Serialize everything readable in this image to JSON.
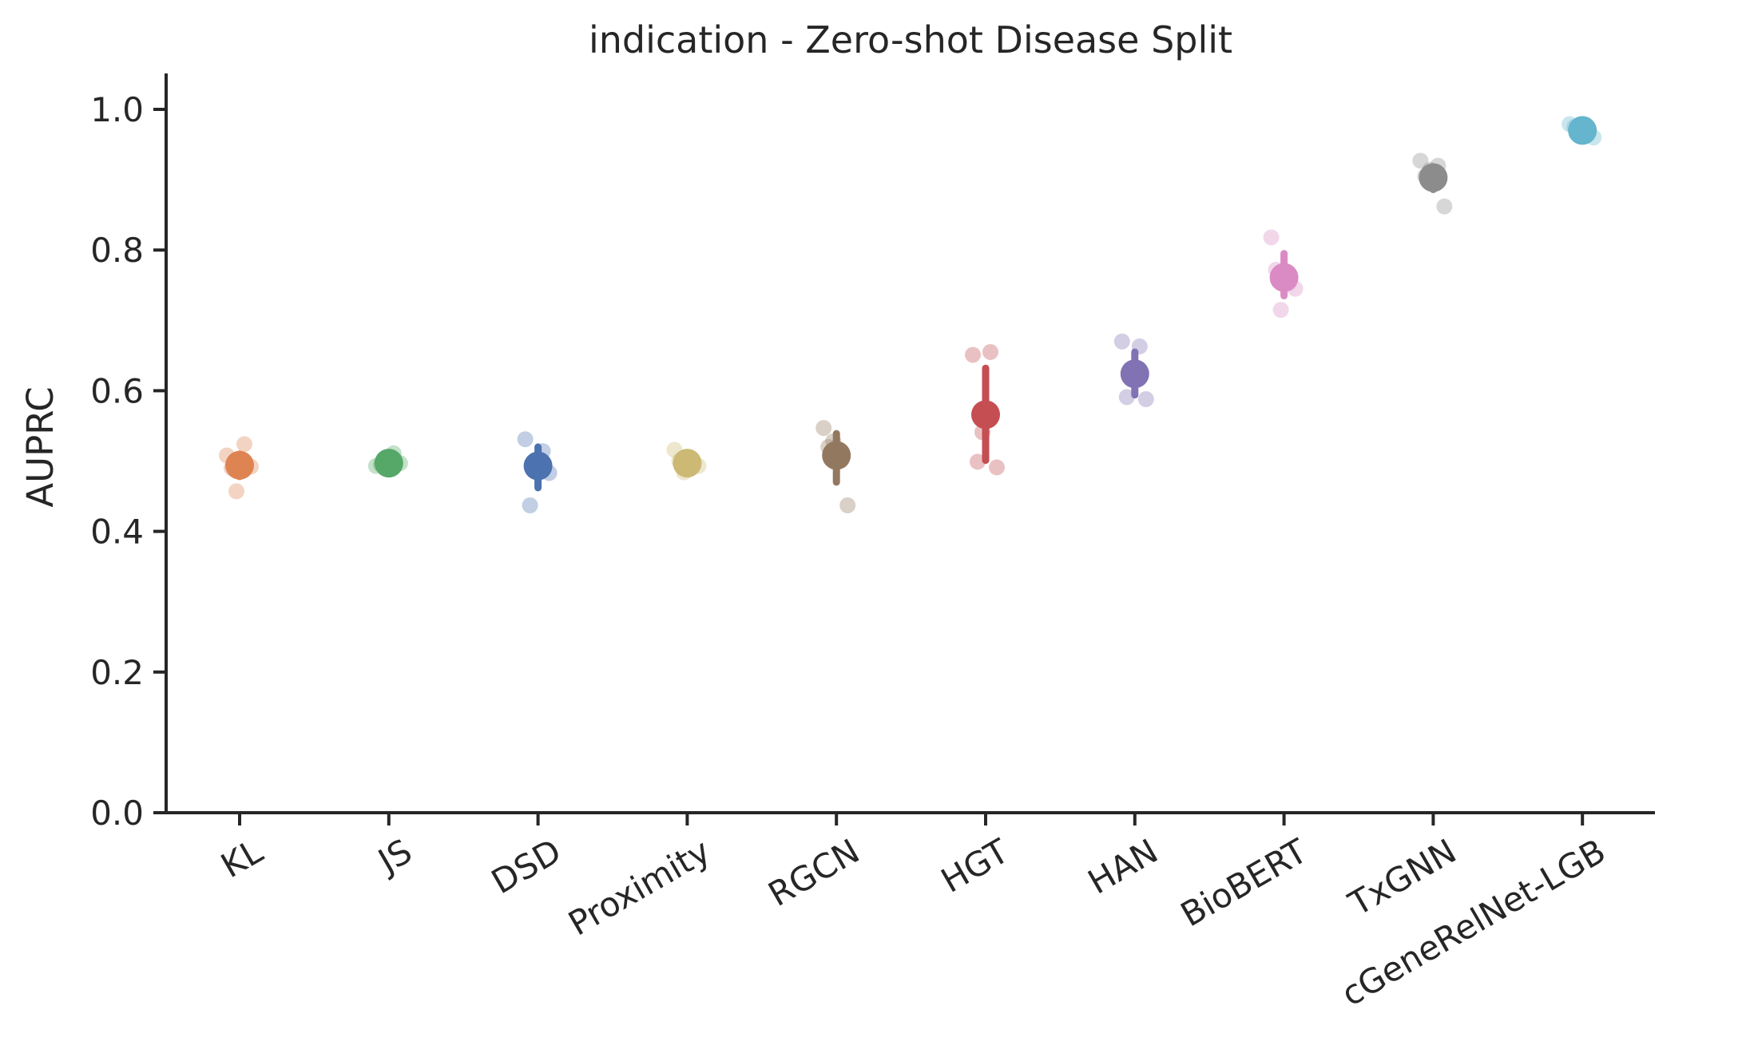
{
  "chart_data": {
    "type": "scatter",
    "title": "indication - Zero-shot Disease Split",
    "xlabel": "",
    "ylabel": "AUPRC",
    "ylim": [
      0.0,
      1.05
    ],
    "yticks": [
      0.0,
      0.2,
      0.4,
      0.6,
      0.8,
      1.0
    ],
    "ytick_labels": [
      "0.0",
      "0.2",
      "0.4",
      "0.6",
      "0.8",
      "1.0"
    ],
    "grid": false,
    "legend": "none",
    "categories": [
      "KL",
      "JS",
      "DSD",
      "Proximity",
      "RGCN",
      "HGT",
      "HAN",
      "BioBERT",
      "TxGNN",
      "cGeneRelNet-LGB"
    ],
    "series": [
      {
        "category": "KL",
        "color": "#dd8452",
        "mean": 0.494,
        "err_low": 0.478,
        "err_high": 0.51,
        "points": [
          0.508,
          0.524,
          0.457,
          0.492,
          0.49
        ]
      },
      {
        "category": "JS",
        "color": "#55a868",
        "mean": 0.497,
        "err_low": 0.493,
        "err_high": 0.502,
        "points": [
          0.493,
          0.511,
          0.49,
          0.497,
          0.495
        ]
      },
      {
        "category": "DSD",
        "color": "#4c72b0",
        "mean": 0.493,
        "err_low": 0.462,
        "err_high": 0.52,
        "points": [
          0.531,
          0.514,
          0.488,
          0.483,
          0.437
        ]
      },
      {
        "category": "Proximity",
        "color": "#ccb974",
        "mean": 0.497,
        "err_low": 0.487,
        "err_high": 0.508,
        "points": [
          0.516,
          0.496,
          0.484,
          0.493,
          0.5
        ]
      },
      {
        "category": "RGCN",
        "color": "#937860",
        "mean": 0.508,
        "err_low": 0.47,
        "err_high": 0.539,
        "points": [
          0.547,
          0.501,
          0.528,
          0.437,
          0.52
        ]
      },
      {
        "category": "HGT",
        "color": "#c44e52",
        "mean": 0.566,
        "err_low": 0.501,
        "err_high": 0.632,
        "points": [
          0.651,
          0.655,
          0.541,
          0.491,
          0.499
        ]
      },
      {
        "category": "HAN",
        "color": "#8172b3",
        "mean": 0.624,
        "err_low": 0.594,
        "err_high": 0.655,
        "points": [
          0.67,
          0.663,
          0.616,
          0.588,
          0.591
        ]
      },
      {
        "category": "BioBERT",
        "color": "#da8bc3",
        "mean": 0.761,
        "err_low": 0.735,
        "err_high": 0.795,
        "points": [
          0.818,
          0.753,
          0.715,
          0.745,
          0.772
        ]
      },
      {
        "category": "TxGNN",
        "color": "#8c8c8c",
        "mean": 0.903,
        "err_low": 0.886,
        "err_high": 0.917,
        "points": [
          0.927,
          0.92,
          0.914,
          0.862,
          0.905
        ]
      },
      {
        "category": "cGeneRelNet-LGB",
        "color": "#64b5cd",
        "mean": 0.97,
        "err_low": 0.96,
        "err_high": 0.977,
        "points": [
          0.979,
          0.969,
          0.962,
          0.96,
          0.975
        ]
      }
    ]
  }
}
